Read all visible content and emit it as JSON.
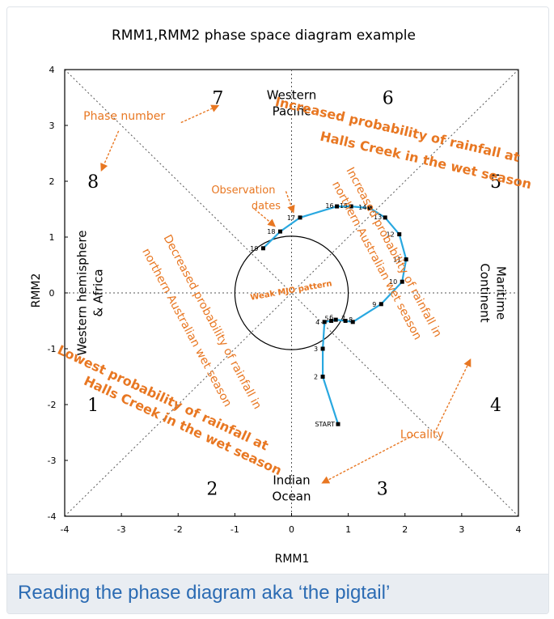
{
  "caption": "Reading the phase diagram aka ‘the pigtail’",
  "colors": {
    "annotation": "#e87722",
    "trajectory": "#29a8e0",
    "axis": "#000000",
    "caption_text": "#2b6bb3",
    "caption_bg": "#e9edf2"
  },
  "chart_data": {
    "type": "scatter",
    "title": "RMM1,RMM2 phase space diagram example",
    "xlabel": "RMM1",
    "ylabel": "RMM2",
    "xlim": [
      -4,
      4
    ],
    "ylim": [
      -4,
      4
    ],
    "xticks": [
      "-4",
      "-3",
      "-2",
      "-1",
      "0",
      "1",
      "2",
      "3",
      "4"
    ],
    "yticks": [
      "4",
      "3",
      "2",
      "1",
      "0",
      "-1",
      "-2",
      "-3",
      "-4"
    ],
    "unit_circle_radius": 1,
    "phase_numbers": [
      {
        "label": "1",
        "x": -3.5,
        "y": -2.0
      },
      {
        "label": "2",
        "x": -1.4,
        "y": -3.5
      },
      {
        "label": "3",
        "x": 1.6,
        "y": -3.5
      },
      {
        "label": "4",
        "x": 3.6,
        "y": -2.0
      },
      {
        "label": "5",
        "x": 3.6,
        "y": 2.0
      },
      {
        "label": "6",
        "x": 1.7,
        "y": 3.5
      },
      {
        "label": "7",
        "x": -1.3,
        "y": 3.5
      },
      {
        "label": "8",
        "x": -3.5,
        "y": 2.0
      }
    ],
    "region_labels": [
      {
        "lines": [
          "Western",
          "Pacific"
        ],
        "x": 0.0,
        "y": 3.4
      },
      {
        "lines": [
          "Indian",
          "Ocean"
        ],
        "x": 0.0,
        "y": -3.5
      },
      {
        "lines": [
          "Western hemisphere",
          "& Africa"
        ],
        "x": -3.55,
        "y": 0.0,
        "rotate": -90
      },
      {
        "lines": [
          "Maritime",
          "Continent"
        ],
        "x": 3.55,
        "y": 0.0,
        "rotate": 90
      }
    ],
    "trajectory": {
      "name": "",
      "points": [
        {
          "label": "START",
          "x": 0.82,
          "y": -2.35
        },
        {
          "label": "2",
          "x": 0.55,
          "y": -1.5
        },
        {
          "label": "3",
          "x": 0.55,
          "y": -1.0
        },
        {
          "label": "4",
          "x": 0.58,
          "y": -0.52
        },
        {
          "label": "5",
          "x": 0.7,
          "y": -0.5
        },
        {
          "label": "6",
          "x": 0.78,
          "y": -0.48
        },
        {
          "label": "7",
          "x": 0.95,
          "y": -0.5
        },
        {
          "label": "8",
          "x": 1.08,
          "y": -0.52
        },
        {
          "label": "9",
          "x": 1.58,
          "y": -0.2
        },
        {
          "label": "10",
          "x": 1.95,
          "y": 0.2
        },
        {
          "label": "11",
          "x": 2.02,
          "y": 0.6
        },
        {
          "label": "12",
          "x": 1.9,
          "y": 1.05
        },
        {
          "label": "13",
          "x": 1.65,
          "y": 1.35
        },
        {
          "label": "14",
          "x": 1.38,
          "y": 1.52
        },
        {
          "label": "15",
          "x": 1.05,
          "y": 1.55
        },
        {
          "label": "16",
          "x": 0.8,
          "y": 1.55
        },
        {
          "label": "17",
          "x": 0.15,
          "y": 1.35
        },
        {
          "label": "18",
          "x": -0.2,
          "y": 1.1
        },
        {
          "label": "19",
          "x": -0.5,
          "y": 0.8
        }
      ]
    },
    "annotations": [
      {
        "text": "Phase number",
        "x": -2.95,
        "y": 3.1,
        "size": 14,
        "bold": false,
        "rotate": 0
      },
      {
        "text": "Observation",
        "x": -0.85,
        "y": 1.78,
        "size": 13,
        "bold": false,
        "rotate": 0
      },
      {
        "text": "dates",
        "x": -0.45,
        "y": 1.5,
        "size": 13,
        "bold": false,
        "rotate": 0
      },
      {
        "text": "Weak MJO pattern",
        "x": 0.0,
        "y": 0.0,
        "size": 10,
        "bold": true,
        "rotate": -10
      },
      {
        "text": "Locality",
        "x": 2.3,
        "y": -2.6,
        "size": 14,
        "bold": false,
        "rotate": 0
      },
      {
        "text": "Increased probability of rainfall at",
        "x": 1.85,
        "y": 2.85,
        "size": 16,
        "bold": true,
        "rotate": 13
      },
      {
        "text": "Halls Creek in the wet season",
        "x": 2.35,
        "y": 2.3,
        "size": 16,
        "bold": true,
        "rotate": 13
      },
      {
        "text": "Increased probability of rainfall in",
        "x": 1.75,
        "y": 0.7,
        "size": 14,
        "bold": false,
        "rotate": 62
      },
      {
        "text": "northern Australian wet season",
        "x": 1.45,
        "y": 0.55,
        "size": 14,
        "bold": false,
        "rotate": 62
      },
      {
        "text": "Decreased probability of rainfall in",
        "x": -1.45,
        "y": -0.55,
        "size": 14,
        "bold": false,
        "rotate": 62
      },
      {
        "text": "northern Australian wet season",
        "x": -1.9,
        "y": -0.65,
        "size": 14,
        "bold": false,
        "rotate": 62
      },
      {
        "text": "Lowest probability of rainfall at",
        "x": -2.3,
        "y": -1.95,
        "size": 16,
        "bold": true,
        "rotate": 25
      },
      {
        "text": "Halls Creek in the wet season",
        "x": -1.95,
        "y": -2.45,
        "size": 16,
        "bold": true,
        "rotate": 25
      }
    ],
    "arrows": [
      {
        "from": [
          -1.95,
          3.05
        ],
        "to": [
          -1.3,
          3.35
        ]
      },
      {
        "from": [
          -3.05,
          2.9
        ],
        "to": [
          -3.35,
          2.2
        ]
      },
      {
        "from": [
          -0.65,
          1.5
        ],
        "to": [
          -0.3,
          1.2
        ]
      },
      {
        "from": [
          -0.1,
          1.82
        ],
        "to": [
          0.03,
          1.45
        ]
      },
      {
        "from": [
          2.15,
          -2.55
        ],
        "to": [
          0.55,
          -3.4
        ]
      },
      {
        "from": [
          2.55,
          -2.45
        ],
        "to": [
          3.15,
          -1.2
        ]
      }
    ],
    "grid": false
  }
}
